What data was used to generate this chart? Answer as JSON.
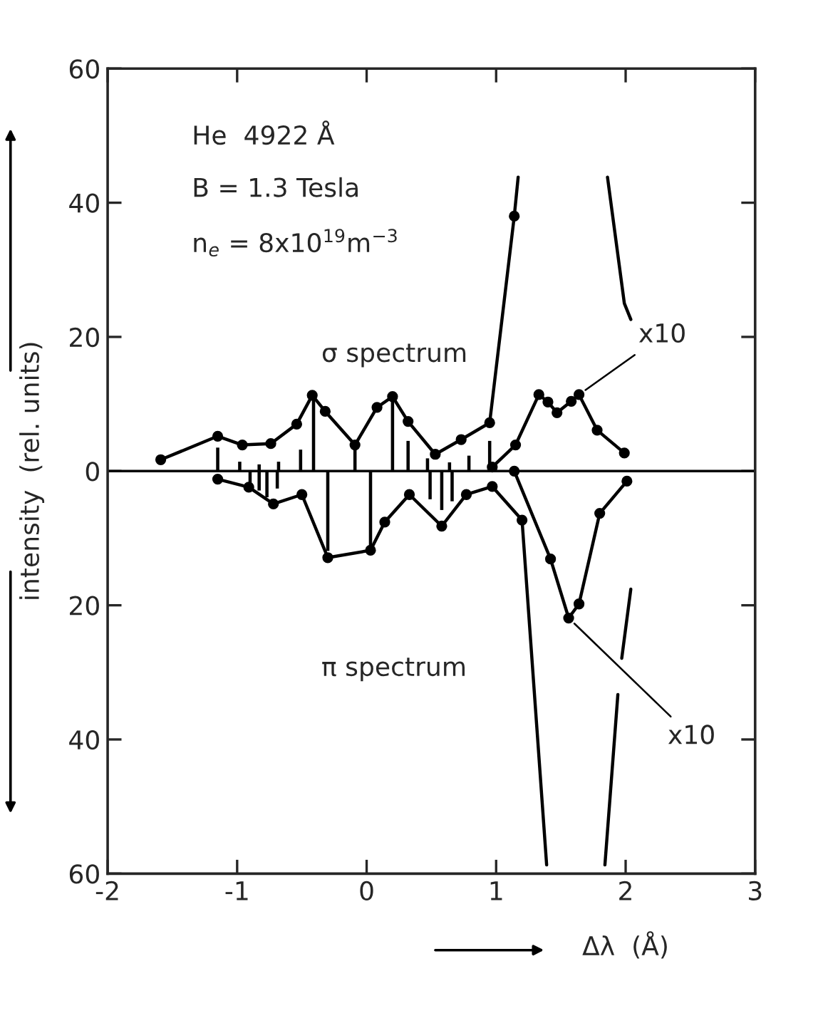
{
  "chart_data": {
    "type": "line",
    "xlabel": "Δλ  (Å)",
    "ylabel": "intensity  (rel. units)",
    "xlim": [
      -2,
      3
    ],
    "xticks": [
      -2,
      -1,
      0,
      1,
      2,
      3
    ],
    "ylim": [
      -60,
      60
    ],
    "yticks": [
      {
        "value": -60,
        "label": "60"
      },
      {
        "value": -40,
        "label": "40"
      },
      {
        "value": -20,
        "label": "20"
      },
      0,
      20,
      40,
      60
    ],
    "grid": false,
    "legend": false,
    "ref_lines": [
      {
        "axis": "y",
        "value": 0,
        "label": null,
        "color": "#000000"
      }
    ],
    "series": [
      {
        "color": "#000000",
        "marker": "circle",
        "x": [
          -1.59,
          -1.15,
          -0.96,
          -0.74,
          -0.54,
          -0.42,
          -0.32,
          -0.09,
          0.08,
          0.2,
          0.32,
          0.53,
          0.73,
          0.95,
          1.14
        ],
        "values": [
          1.7,
          5.2,
          3.9,
          4.1,
          7.0,
          11.3,
          8.9,
          3.9,
          9.5,
          11.1,
          7.4,
          2.5,
          4.7,
          7.2,
          38
        ]
      },
      {
        "color": "#000000",
        "marker": "none",
        "x": [
          1.14,
          1.17
        ],
        "values": [
          38,
          43.8
        ]
      },
      {
        "color": "#000000",
        "marker": "none",
        "x": [
          1.86,
          1.99,
          2.04
        ],
        "values": [
          43.8,
          25,
          22.6
        ]
      },
      {
        "color": "#000000",
        "marker": "circle",
        "x": [
          0.97,
          1.15,
          1.33,
          1.4,
          1.47,
          1.58,
          1.64,
          1.78,
          1.99
        ],
        "values": [
          0.6,
          3.9,
          11.4,
          10.3,
          8.7,
          10.4,
          11.4,
          6.1,
          2.7
        ]
      },
      {
        "color": "#000000",
        "marker": "circle",
        "x": [
          -1.15,
          -0.91,
          -0.72,
          -0.5,
          -0.3,
          0.03,
          0.14,
          0.33,
          0.58,
          0.77,
          0.97,
          1.2
        ],
        "values": [
          -1.2,
          -2.4,
          -4.9,
          -3.5,
          -12.9,
          -11.8,
          -7.6,
          -3.5,
          -8.2,
          -3.5,
          -2.3,
          -7.3
        ]
      },
      {
        "color": "#000000",
        "marker": "none",
        "x": [
          1.2,
          1.39
        ],
        "values": [
          -7.3,
          -58.7
        ]
      },
      {
        "color": "#000000",
        "marker": "none",
        "x": [
          1.84,
          1.94
        ],
        "values": [
          -58.7,
          -33.3
        ]
      },
      {
        "color": "#000000",
        "marker": "none",
        "x": [
          1.97,
          2.04
        ],
        "values": [
          -27.9,
          -17.6
        ]
      },
      {
        "color": "#000000",
        "marker": "circle",
        "x": [
          1.14,
          1.42,
          1.56,
          1.64,
          1.8,
          2.01
        ],
        "values": [
          0,
          -13.1,
          -21.9,
          -19.8,
          -6.3,
          -1.5
        ]
      },
      {
        "type": "bar",
        "color": "#000000",
        "x": [
          -1.15,
          -0.98,
          -0.83,
          -0.68,
          -0.51,
          -0.41,
          -0.09,
          0.2,
          0.32,
          0.47,
          0.64,
          0.79,
          0.95
        ],
        "values": [
          3.5,
          1.4,
          1.0,
          1.4,
          3.2,
          11.3,
          3.2,
          11.1,
          4.5,
          1.9,
          1.3,
          2.3,
          4.5
        ]
      },
      {
        "type": "bar",
        "color": "#000000",
        "x": [
          -0.9,
          -0.83,
          -0.77,
          -0.69,
          -0.3,
          0.03,
          0.49,
          0.58,
          0.66
        ],
        "values": [
          -2.3,
          -2.9,
          -3.9,
          -2.6,
          -11.9,
          -11.6,
          -4.2,
          -5.8,
          -4.5
        ]
      }
    ],
    "annotations": [
      "He  4922 Å",
      "B = 1.3 Tesla",
      "n$_{e}$ = 8x10$^{19}$m$^{−3}$",
      "σ spectrum",
      "π spectrum",
      {
        "text": "x10",
        "x": 1.64,
        "y": 11.4
      },
      {
        "text": "x10",
        "x": 1.56,
        "y": -21.9
      }
    ]
  }
}
